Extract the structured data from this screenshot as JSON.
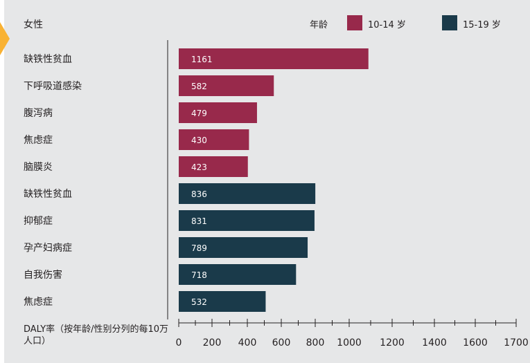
{
  "chart_data": {
    "type": "bar",
    "orientation": "horizontal",
    "title": "女性",
    "legend_title": "年龄",
    "legend_placement": "top-right",
    "series": [
      {
        "name": "10-14 岁",
        "color": "#98294b"
      },
      {
        "name": "15-19 岁",
        "color": "#1a3a4a"
      }
    ],
    "bars": [
      {
        "category": "缺铁性贫血",
        "value": 1161,
        "series": 0
      },
      {
        "category": "下呼吸道感染",
        "value": 582,
        "series": 0
      },
      {
        "category": "腹泻病",
        "value": 479,
        "series": 0
      },
      {
        "category": "焦虑症",
        "value": 430,
        "series": 0
      },
      {
        "category": "脑膜炎",
        "value": 423,
        "series": 0
      },
      {
        "category": "缺铁性贫血",
        "value": 836,
        "series": 1
      },
      {
        "category": "抑郁症",
        "value": 831,
        "series": 1
      },
      {
        "category": "孕产妇病症",
        "value": 789,
        "series": 1
      },
      {
        "category": "自我伤害",
        "value": 718,
        "series": 1
      },
      {
        "category": "焦虑症",
        "value": 532,
        "series": 1
      }
    ],
    "xlabel": "DALY率（按年龄/性别分列的每10万人口）",
    "xticks": [
      "0",
      "200",
      "400",
      "600",
      "800",
      "1000",
      "1200",
      "1400",
      "1600",
      "1700"
    ],
    "grid": false
  },
  "colors": {
    "accent": "#f9b233",
    "background": "#e6e7e8"
  }
}
